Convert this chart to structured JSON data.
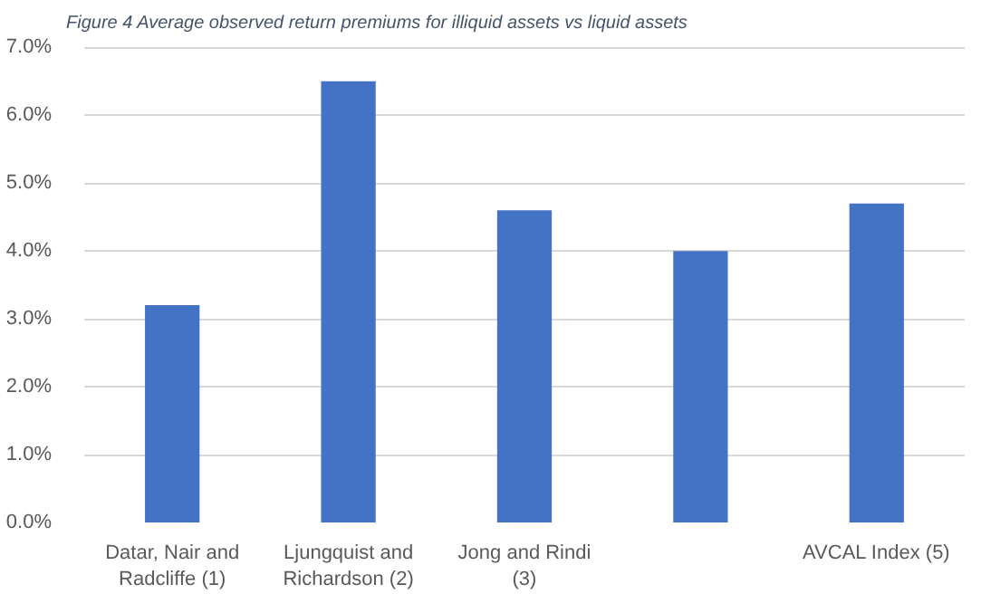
{
  "chart_data": {
    "type": "bar",
    "title": "Figure 4 Average observed return premiums for illiquid assets vs liquid assets",
    "categories": [
      "Datar, Nair and Radcliffe (1)",
      "Ljungquist and Richardson (2)",
      "Jong and Rindi (3)",
      null,
      "AVCAL Index (5)"
    ],
    "values": [
      3.2,
      6.5,
      4.6,
      4.0,
      4.7
    ],
    "color": "#4472c4",
    "ylim": [
      0,
      7
    ],
    "yticks": [
      {
        "value": 0,
        "label": "0.0%"
      },
      {
        "value": 1,
        "label": "1.0%"
      },
      {
        "value": 2,
        "label": "2.0%"
      },
      {
        "value": 3,
        "label": "3.0%"
      },
      {
        "value": 4,
        "label": "4.0%"
      },
      {
        "value": 5,
        "label": "5.0%"
      },
      {
        "value": 6,
        "label": "6.0%"
      },
      {
        "value": 7,
        "label": "7.0%"
      }
    ],
    "grid": "y"
  }
}
